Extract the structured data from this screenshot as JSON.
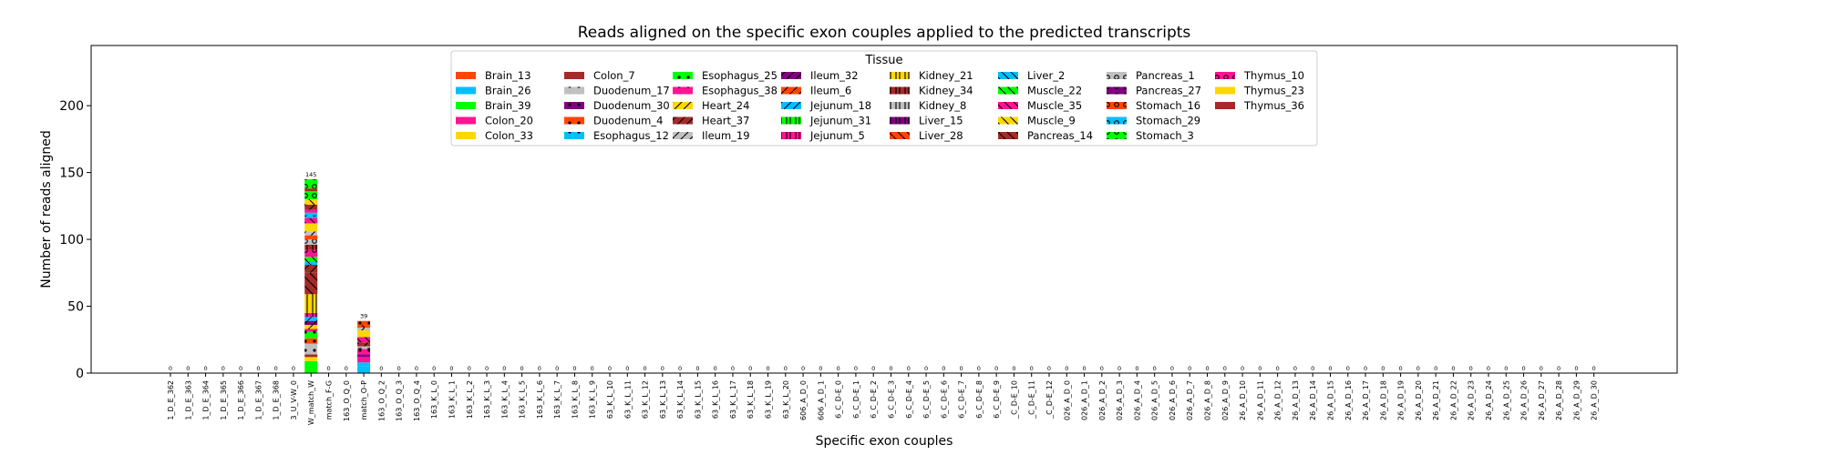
{
  "chart_data": {
    "type": "bar",
    "stacked": true,
    "title": "Reads aligned on the specific exon couples applied to the predicted transcripts",
    "xlabel": "Specific exon couples",
    "ylabel": "Number of reads aligned",
    "ylim": [
      0,
      245
    ],
    "yticks": [
      0,
      50,
      100,
      150,
      200
    ],
    "grid": false,
    "legend_title": "Tissue",
    "legend_position": "top-center",
    "categories": [
      "1_D_E_362",
      "1_D_E_363",
      "1_D_E_364",
      "1_D_E_365",
      "1_D_E_366",
      "1_D_E_367",
      "1_D_E_368",
      "3_U_V-W_0",
      "W_match_W",
      "match_F-G",
      "163_O_Q_0",
      "match_O-P",
      "163_O_Q_2",
      "163_O_Q_3",
      "163_O_Q_4",
      "163_K_L_0",
      "163_K_L_1",
      "163_K_L_2",
      "163_K_L_3",
      "163_K_L_4",
      "163_K_L_5",
      "163_K_L_6",
      "163_K_L_7",
      "163_K_L_8",
      "163_K_L_9",
      "63_K_L_10",
      "63_K_L_11",
      "63_K_L_12",
      "63_K_L_13",
      "63_K_L_14",
      "63_K_L_15",
      "63_K_L_16",
      "63_K_L_17",
      "63_K_L_18",
      "63_K_L_19",
      "63_K_L_20",
      "606_A_D_0",
      "606_A_D_1",
      "6_C_D-E_0",
      "6_C_D-E_1",
      "6_C_D-E_2",
      "6_C_D-E_3",
      "6_C_D-E_4",
      "6_C_D-E_5",
      "6_C_D-E_6",
      "6_C_D-E_7",
      "6_C_D-E_8",
      "6_C_D-E_9",
      "_C_D-E_10",
      "_C_D-E_11",
      "_C_D-E_12",
      "026_A_D_0",
      "026_A_D_1",
      "026_A_D_2",
      "026_A_D_3",
      "026_A_D_4",
      "026_A_D_5",
      "026_A_D_6",
      "026_A_D_7",
      "026_A_D_8",
      "026_A_D_9",
      "26_A_D_10",
      "26_A_D_11",
      "26_A_D_12",
      "26_A_D_13",
      "26_A_D_14",
      "26_A_D_15",
      "26_A_D_16",
      "26_A_D_17",
      "26_A_D_18",
      "26_A_D_19",
      "26_A_D_20",
      "26_A_D_21",
      "26_A_D_22",
      "26_A_D_23",
      "26_A_D_24",
      "26_A_D_25",
      "26_A_D_26",
      "26_A_D_27",
      "26_A_D_28",
      "26_A_D_29",
      "26_A_D_30"
    ],
    "totals": [
      0,
      0,
      0,
      0,
      0,
      0,
      0,
      0,
      145,
      0,
      0,
      39,
      0,
      0,
      0,
      0,
      0,
      0,
      0,
      0,
      0,
      0,
      0,
      0,
      0,
      0,
      0,
      0,
      0,
      0,
      0,
      0,
      0,
      0,
      0,
      0,
      0,
      0,
      0,
      0,
      0,
      0,
      0,
      0,
      0,
      0,
      0,
      0,
      0,
      0,
      0,
      0,
      0,
      0,
      0,
      0,
      0,
      0,
      0,
      0,
      0,
      0,
      0,
      0,
      0,
      0,
      0,
      0,
      0,
      0,
      0,
      0,
      0,
      0,
      0,
      0,
      0,
      0,
      0,
      0,
      0,
      0
    ],
    "series": [
      {
        "name": "Brain_13",
        "color": "#ff4500"
      },
      {
        "name": "Brain_26",
        "color": "#00bfff"
      },
      {
        "name": "Brain_39",
        "color": "#00ff00"
      },
      {
        "name": "Colon_20",
        "color": "#ff1493"
      },
      {
        "name": "Colon_33",
        "color": "#ffd700"
      },
      {
        "name": "Colon_7",
        "color": "#a52a2a"
      },
      {
        "name": "Duodenum_17",
        "color": "#c0c0c0"
      },
      {
        "name": "Duodenum_30",
        "color": "#800080"
      },
      {
        "name": "Duodenum_4",
        "color": "#ff4500"
      },
      {
        "name": "Esophagus_12",
        "color": "#00bfff"
      },
      {
        "name": "Esophagus_25",
        "color": "#00ff00"
      },
      {
        "name": "Esophagus_38",
        "color": "#ff1493"
      },
      {
        "name": "Heart_24",
        "color": "#ffd700"
      },
      {
        "name": "Heart_37",
        "color": "#a52a2a"
      },
      {
        "name": "Ileum_19",
        "color": "#c0c0c0"
      },
      {
        "name": "Ileum_32",
        "color": "#800080"
      },
      {
        "name": "Ileum_6",
        "color": "#ff4500"
      },
      {
        "name": "Jejunum_18",
        "color": "#00bfff"
      },
      {
        "name": "Jejunum_31",
        "color": "#00ff00"
      },
      {
        "name": "Jejunum_5",
        "color": "#ff1493"
      },
      {
        "name": "Kidney_21",
        "color": "#ffd700"
      },
      {
        "name": "Kidney_34",
        "color": "#a52a2a"
      },
      {
        "name": "Kidney_8",
        "color": "#c0c0c0"
      },
      {
        "name": "Liver_15",
        "color": "#800080"
      },
      {
        "name": "Liver_28",
        "color": "#ff4500"
      },
      {
        "name": "Liver_2",
        "color": "#00bfff"
      },
      {
        "name": "Muscle_22",
        "color": "#00ff00"
      },
      {
        "name": "Muscle_35",
        "color": "#ff1493"
      },
      {
        "name": "Muscle_9",
        "color": "#ffd700"
      },
      {
        "name": "Pancreas_14",
        "color": "#a52a2a"
      },
      {
        "name": "Pancreas_1",
        "color": "#c0c0c0"
      },
      {
        "name": "Pancreas_27",
        "color": "#800080"
      },
      {
        "name": "Stomach_16",
        "color": "#ff4500"
      },
      {
        "name": "Stomach_29",
        "color": "#00bfff"
      },
      {
        "name": "Stomach_3",
        "color": "#00ff00"
      },
      {
        "name": "Thymus_10",
        "color": "#ff1493"
      },
      {
        "name": "Thymus_23",
        "color": "#ffd700"
      },
      {
        "name": "Thymus_36",
        "color": "#a52a2a"
      }
    ],
    "stack_segments": {
      "W_match_W": [
        {
          "series": "Brain_39",
          "value": 9
        },
        {
          "series": "Colon_33",
          "value": 3
        },
        {
          "series": "Colon_7",
          "value": 2
        },
        {
          "series": "Duodenum_17",
          "value": 8
        },
        {
          "series": "Duodenum_4",
          "value": 4
        },
        {
          "series": "Esophagus_25",
          "value": 5
        },
        {
          "series": "Esophagus_38",
          "value": 2
        },
        {
          "series": "Heart_24",
          "value": 3
        },
        {
          "series": "Ileum_32",
          "value": 3
        },
        {
          "series": "Jejunum_18",
          "value": 3
        },
        {
          "series": "Jejunum_5",
          "value": 3
        },
        {
          "series": "Kidney_21",
          "value": 14
        },
        {
          "series": "Pancreas_14",
          "value": 16
        },
        {
          "series": "Heart_37",
          "value": 6
        },
        {
          "series": "Liver_2",
          "value": 2
        },
        {
          "series": "Muscle_22",
          "value": 4
        },
        {
          "series": "Thymus_10",
          "value": 5
        },
        {
          "series": "Kidney_34",
          "value": 4
        },
        {
          "series": "Pancreas_1",
          "value": 4
        },
        {
          "series": "Brain_13",
          "value": 3
        },
        {
          "series": "Ileum_19",
          "value": 3
        },
        {
          "series": "Thymus_23",
          "value": 6
        },
        {
          "series": "Muscle_35",
          "value": 4
        },
        {
          "series": "Stomach_29",
          "value": 2
        },
        {
          "series": "Brain_26",
          "value": 2
        },
        {
          "series": "Colon_20",
          "value": 2
        },
        {
          "series": "Heart_37",
          "value": 4
        },
        {
          "series": "Muscle_9",
          "value": 4
        },
        {
          "series": "Stomach_3",
          "value": 6
        },
        {
          "series": "Thymus_36",
          "value": 2
        },
        {
          "series": "Stomach_3",
          "value": 7
        }
      ],
      "match_O-P": [
        {
          "series": "Brain_26",
          "value": 5
        },
        {
          "series": "Esophagus_12",
          "value": 3
        },
        {
          "series": "Colon_20",
          "value": 4
        },
        {
          "series": "Duodenum_30",
          "value": 2
        },
        {
          "series": "Esophagus_38",
          "value": 4
        },
        {
          "series": "Pancreas_1",
          "value": 2
        },
        {
          "series": "Heart_37",
          "value": 3
        },
        {
          "series": "Muscle_35",
          "value": 4
        },
        {
          "series": "Colon_33",
          "value": 5
        },
        {
          "series": "Ileum_19",
          "value": 2
        },
        {
          "series": "Liver_28",
          "value": 2
        },
        {
          "series": "Duodenum_4",
          "value": 3
        }
      ]
    }
  }
}
